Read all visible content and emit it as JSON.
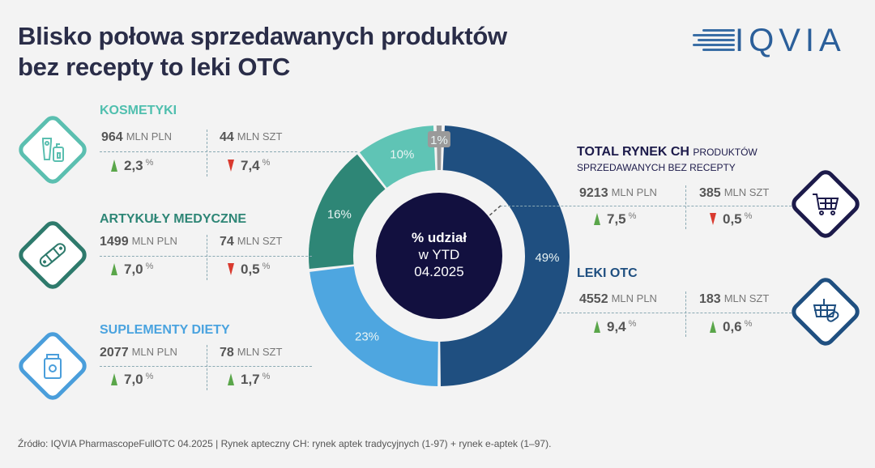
{
  "title": [
    "Blisko połowa sprzedawanych produktów",
    "bez recepty to leki OTC"
  ],
  "logo": "IQVIA",
  "center": {
    "line1": "% udział",
    "line2": "w YTD",
    "line3": "04.2025"
  },
  "colors": {
    "leki_otc": "#1f4f80",
    "suplementy": "#4ea6e0",
    "artykuly": "#2e8676",
    "kosmetyki": "#5fc4b5",
    "inne": "#9a9a9a",
    "up": "#5aa64a",
    "down": "#d93a2f",
    "navy": "#1c1a4a"
  },
  "chart_data": {
    "type": "pie",
    "donut": true,
    "categories": [
      "LEKI OTC",
      "SUPLEMENTY DIETY",
      "ARTYKUŁY MEDYCZNE",
      "KOSMETYKI",
      ""
    ],
    "values": [
      49,
      23,
      16,
      10,
      1
    ],
    "labels": [
      "49%",
      "23%",
      "16%",
      "10%",
      "1%"
    ]
  },
  "categories": [
    {
      "name": "KOSMETYKI",
      "icon": "cosmetics-icon",
      "value_pln": "964",
      "value_szt": "44",
      "unit_pln": "MLN PLN",
      "unit_szt": "MLN SZT",
      "change_pln": "2,3",
      "change_pln_dir": "up",
      "change_szt": "7,4",
      "change_szt_dir": "down",
      "pct_unit": "%"
    },
    {
      "name": "ARTYKUŁY MEDYCZNE",
      "icon": "bandage-icon",
      "value_pln": "1499",
      "value_szt": "74",
      "unit_pln": "MLN PLN",
      "unit_szt": "MLN SZT",
      "change_pln": "7,0",
      "change_pln_dir": "up",
      "change_szt": "0,5",
      "change_szt_dir": "down",
      "pct_unit": "%"
    },
    {
      "name": "SUPLEMENTY DIETY",
      "icon": "supplement-jar-icon",
      "value_pln": "2077",
      "value_szt": "78",
      "unit_pln": "MLN PLN",
      "unit_szt": "MLN SZT",
      "change_pln": "7,0",
      "change_pln_dir": "up",
      "change_szt": "1,7",
      "change_szt_dir": "up",
      "pct_unit": "%"
    },
    {
      "name": "TOTAL RYNEK CH",
      "subtitle_a": "PRODUKTÓW",
      "subtitle_b": "SPRZEDAWANYCH BEZ RECEPTY",
      "icon": "shopping-cart-icon",
      "value_pln": "9213",
      "value_szt": "385",
      "unit_pln": "MLN PLN",
      "unit_szt": "MLN SZT",
      "change_pln": "7,5",
      "change_pln_dir": "up",
      "change_szt": "0,5",
      "change_szt_dir": "down",
      "pct_unit": "%"
    },
    {
      "name": "LEKI OTC",
      "icon": "basket-pills-icon",
      "value_pln": "4552",
      "value_szt": "183",
      "unit_pln": "MLN PLN",
      "unit_szt": "MLN SZT",
      "change_pln": "9,4",
      "change_pln_dir": "up",
      "change_szt": "0,6",
      "change_szt_dir": "up",
      "pct_unit": "%"
    }
  ],
  "footnote": "Źródło: IQVIA PharmascopeFullOTC 04.2025 | Rynek apteczny CH: rynek aptek tradycyjnych (1-97) + rynek e-aptek (1–97)."
}
